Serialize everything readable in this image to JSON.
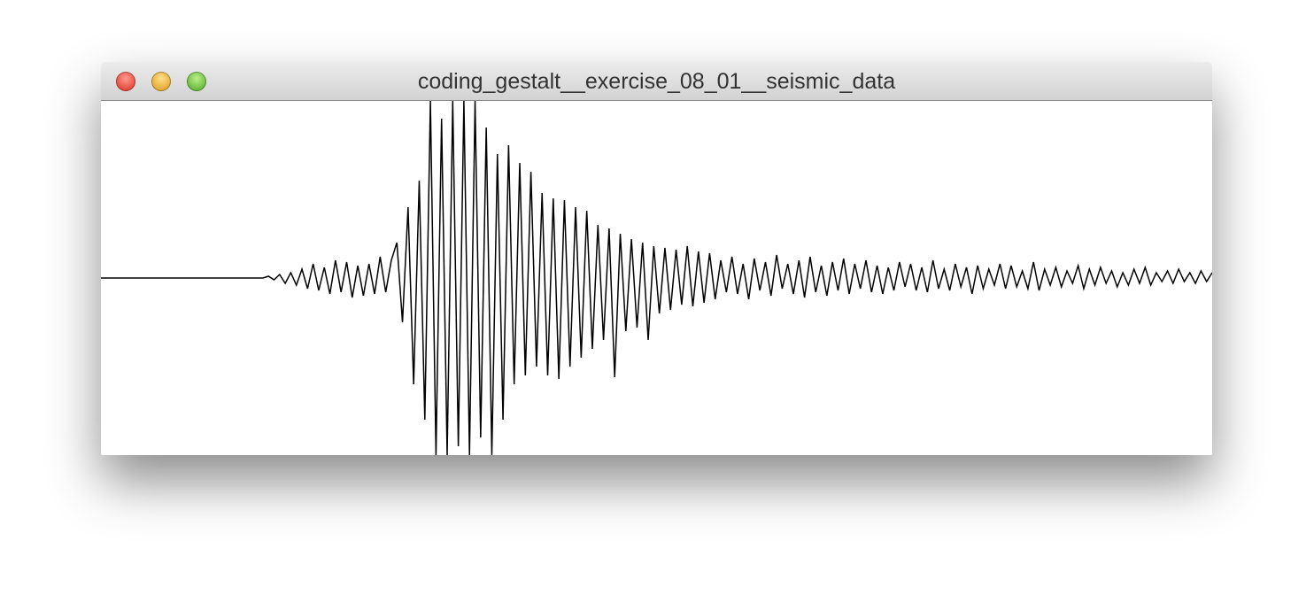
{
  "window": {
    "title": "coding_gestalt__exercise_08_01__seismic_data"
  },
  "chart_data": {
    "type": "line",
    "color": "#000000",
    "ylim": [
      -100,
      100
    ],
    "values": [
      0,
      0,
      0,
      0,
      0,
      0,
      0,
      0,
      0,
      0,
      0,
      0,
      0,
      0,
      0,
      0,
      0,
      0,
      0,
      0,
      0,
      0,
      0,
      0,
      0,
      0,
      0,
      0,
      0,
      0,
      1,
      -1,
      2,
      -3,
      3,
      -4,
      5,
      -6,
      8,
      -7,
      6,
      -9,
      10,
      -8,
      9,
      -11,
      7,
      -10,
      8,
      -9,
      12,
      -8,
      10,
      20,
      -25,
      40,
      -60,
      55,
      -80,
      100,
      -100,
      90,
      -100,
      100,
      -95,
      100,
      -100,
      100,
      -90,
      85,
      -100,
      70,
      -80,
      75,
      -60,
      65,
      -55,
      60,
      -50,
      48,
      -55,
      45,
      -57,
      44,
      -50,
      40,
      -45,
      38,
      -40,
      30,
      -35,
      28,
      -56,
      25,
      -30,
      22,
      -28,
      20,
      -35,
      18,
      -20,
      17,
      -18,
      16,
      -15,
      18,
      -16,
      15,
      -14,
      14,
      -12,
      10,
      -8,
      12,
      -9,
      8,
      -12,
      11,
      -7,
      9,
      -10,
      13,
      -6,
      8,
      -9,
      10,
      -11,
      12,
      -8,
      7,
      -10,
      9,
      -7,
      11,
      -9,
      8,
      -6,
      10,
      -8,
      7,
      -9,
      6,
      -7,
      9,
      -5,
      8,
      -7,
      6,
      -8,
      10,
      -6,
      5,
      -7,
      8,
      -5,
      6,
      -9,
      7,
      -6,
      5,
      -4,
      8,
      -6,
      7,
      -5,
      4,
      -6,
      9,
      -7,
      5,
      -4,
      6,
      -5,
      4,
      -3,
      7,
      -6,
      5,
      -4,
      6,
      -3,
      4,
      -5,
      3,
      -4,
      5,
      -3,
      6,
      -4,
      3,
      -2,
      4,
      -3,
      5,
      -2,
      3,
      -3,
      4,
      -2,
      3
    ]
  }
}
